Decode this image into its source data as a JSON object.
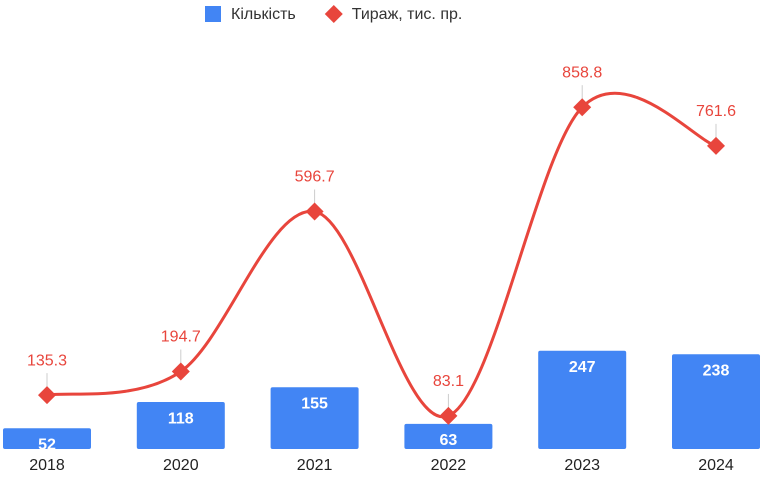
{
  "chart_data": {
    "type": "bar-line",
    "categories": [
      "2018",
      "2020",
      "2021",
      "2022",
      "2023",
      "2024"
    ],
    "series": [
      {
        "name": "Кількість",
        "type": "bar",
        "color": "#4285f4",
        "values": [
          52,
          118,
          155,
          63,
          247,
          238
        ]
      },
      {
        "name": "Тираж, тис. пр.",
        "type": "line",
        "color": "#e8453c",
        "values": [
          135.3,
          194.7,
          596.7,
          83.1,
          858.8,
          761.6
        ]
      }
    ]
  }
}
